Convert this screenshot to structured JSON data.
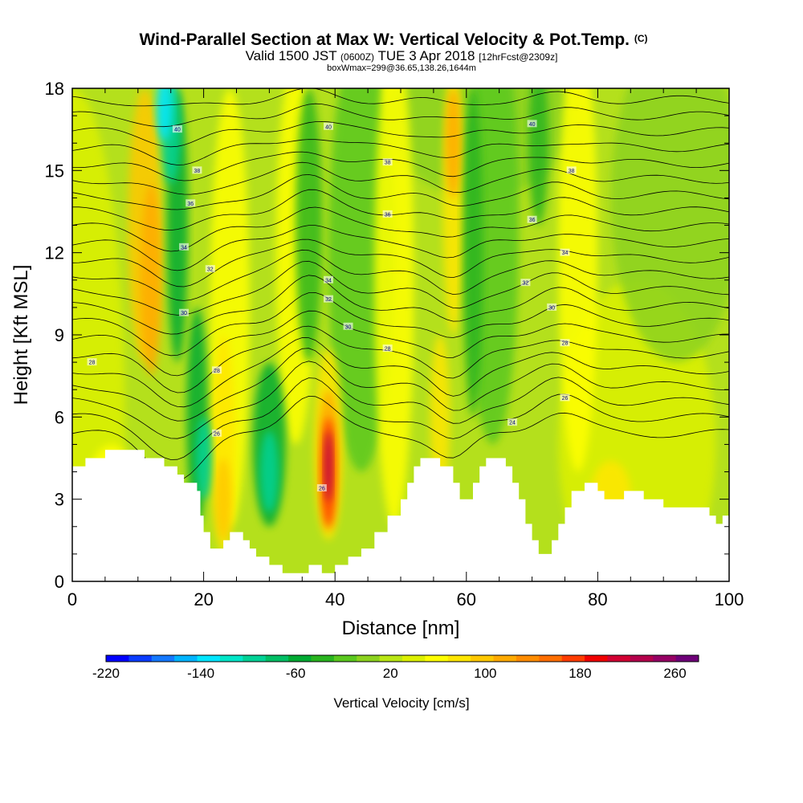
{
  "header": {
    "title": "Wind-Parallel Section at Max W: Vertical Velocity & Pot.Temp.",
    "title_mark": "(C)",
    "subtitle_prefix": "Valid 1500 JST",
    "subtitle_utc": "(0600Z)",
    "subtitle_date": "TUE 3 Apr 2018",
    "subtitle_fcst": "[12hrFcst@2309z]",
    "subtitle2": "boxWmax=299@36.65,138.26,1644m"
  },
  "chart_data": {
    "type": "heatmap",
    "title": "Wind-Parallel Section at Max W: Vertical Velocity & Pot.Temp.",
    "xlabel": "Distance [nm]",
    "ylabel": "Height [Kft MSL]",
    "xlim": [
      0,
      100
    ],
    "ylim": [
      0,
      18
    ],
    "x_ticks": [
      0,
      20,
      40,
      60,
      80,
      100
    ],
    "y_ticks": [
      0,
      3,
      6,
      9,
      12,
      15,
      18
    ],
    "grid": false,
    "colorbar": {
      "label": "Vertical Velocity [cm/s]",
      "tick_labels": [
        "-220",
        "-140",
        "-60",
        "20",
        "100",
        "180",
        "260"
      ],
      "tick_values": [
        -220,
        -140,
        -60,
        20,
        100,
        180,
        260
      ],
      "range": [
        -220,
        280
      ],
      "colors": [
        "#0000ff",
        "#0a3cff",
        "#1478ff",
        "#00b4ff",
        "#00e6ff",
        "#00e6c8",
        "#00d296",
        "#00be64",
        "#00aa32",
        "#28b41e",
        "#5ac81e",
        "#8cd21e",
        "#b9e614",
        "#dcf000",
        "#ffff00",
        "#ffe600",
        "#ffc800",
        "#ffaa00",
        "#ff8c00",
        "#ff6e00",
        "#ff3c00",
        "#f00000",
        "#d20032",
        "#b4004b",
        "#960064",
        "#6e0078"
      ]
    },
    "terrain_kft": [
      [
        0,
        4.2
      ],
      [
        2,
        4.2
      ],
      [
        2,
        4.5
      ],
      [
        5,
        4.5
      ],
      [
        5,
        4.8
      ],
      [
        11,
        4.8
      ],
      [
        11,
        4.5
      ],
      [
        14,
        4.5
      ],
      [
        14,
        4.2
      ],
      [
        16,
        4.2
      ],
      [
        16,
        3.9
      ],
      [
        17,
        3.9
      ],
      [
        17,
        3.6
      ],
      [
        19,
        3.6
      ],
      [
        19,
        3.3
      ],
      [
        19.5,
        3.3
      ],
      [
        19.5,
        2.4
      ],
      [
        20,
        2.4
      ],
      [
        20,
        1.8
      ],
      [
        21,
        1.8
      ],
      [
        21,
        1.2
      ],
      [
        23,
        1.2
      ],
      [
        23,
        1.5
      ],
      [
        24,
        1.5
      ],
      [
        24,
        1.8
      ],
      [
        26,
        1.8
      ],
      [
        26,
        1.5
      ],
      [
        27,
        1.5
      ],
      [
        27,
        1.2
      ],
      [
        28,
        1.2
      ],
      [
        28,
        0.9
      ],
      [
        30,
        0.9
      ],
      [
        30,
        0.6
      ],
      [
        32,
        0.6
      ],
      [
        32,
        0.3
      ],
      [
        36,
        0.3
      ],
      [
        36,
        0.6
      ],
      [
        38,
        0.6
      ],
      [
        38,
        0.3
      ],
      [
        40,
        0.3
      ],
      [
        40,
        0.6
      ],
      [
        42,
        0.6
      ],
      [
        42,
        0.9
      ],
      [
        44,
        0.9
      ],
      [
        44,
        1.2
      ],
      [
        46,
        1.2
      ],
      [
        46,
        1.8
      ],
      [
        48,
        1.8
      ],
      [
        48,
        2.4
      ],
      [
        50,
        2.4
      ],
      [
        50,
        3.0
      ],
      [
        51,
        3.0
      ],
      [
        51,
        3.6
      ],
      [
        52,
        3.6
      ],
      [
        52,
        4.2
      ],
      [
        53,
        4.2
      ],
      [
        53,
        4.5
      ],
      [
        56,
        4.5
      ],
      [
        56,
        4.2
      ],
      [
        58,
        4.2
      ],
      [
        58,
        3.6
      ],
      [
        59,
        3.6
      ],
      [
        59,
        3.0
      ],
      [
        61,
        3.0
      ],
      [
        61,
        3.6
      ],
      [
        62,
        3.6
      ],
      [
        62,
        4.2
      ],
      [
        63,
        4.2
      ],
      [
        63,
        4.5
      ],
      [
        66,
        4.5
      ],
      [
        66,
        4.2
      ],
      [
        67,
        4.2
      ],
      [
        67,
        3.6
      ],
      [
        68,
        3.6
      ],
      [
        68,
        3.0
      ],
      [
        69,
        3.0
      ],
      [
        69,
        2.1
      ],
      [
        70,
        2.1
      ],
      [
        70,
        1.5
      ],
      [
        71,
        1.5
      ],
      [
        71,
        1.0
      ],
      [
        73,
        1.0
      ],
      [
        73,
        1.5
      ],
      [
        74,
        1.5
      ],
      [
        74,
        2.1
      ],
      [
        75,
        2.1
      ],
      [
        75,
        2.7
      ],
      [
        76,
        2.7
      ],
      [
        76,
        3.3
      ],
      [
        78,
        3.3
      ],
      [
        78,
        3.6
      ],
      [
        80,
        3.6
      ],
      [
        80,
        3.3
      ],
      [
        81,
        3.3
      ],
      [
        81,
        3.0
      ],
      [
        84,
        3.0
      ],
      [
        84,
        3.3
      ],
      [
        87,
        3.3
      ],
      [
        87,
        3.0
      ],
      [
        90,
        3.0
      ],
      [
        90,
        2.7
      ],
      [
        97,
        2.7
      ],
      [
        97,
        2.4
      ],
      [
        98,
        2.4
      ],
      [
        98,
        2.1
      ],
      [
        99,
        2.1
      ],
      [
        99,
        2.4
      ],
      [
        100,
        2.4
      ]
    ],
    "contour_labels": [
      {
        "x": 3,
        "y": 8.0,
        "text": "28"
      },
      {
        "x": 16,
        "y": 16.5,
        "text": "40"
      },
      {
        "x": 19,
        "y": 15.0,
        "text": "38"
      },
      {
        "x": 18,
        "y": 13.8,
        "text": "36"
      },
      {
        "x": 17,
        "y": 12.2,
        "text": "34"
      },
      {
        "x": 21,
        "y": 11.4,
        "text": "32"
      },
      {
        "x": 17,
        "y": 9.8,
        "text": "30"
      },
      {
        "x": 22,
        "y": 7.7,
        "text": "28"
      },
      {
        "x": 22,
        "y": 5.4,
        "text": "26"
      },
      {
        "x": 39,
        "y": 11.0,
        "text": "34"
      },
      {
        "x": 39,
        "y": 10.3,
        "text": "32"
      },
      {
        "x": 39,
        "y": 16.6,
        "text": "40"
      },
      {
        "x": 48,
        "y": 15.3,
        "text": "38"
      },
      {
        "x": 48,
        "y": 13.4,
        "text": "36"
      },
      {
        "x": 42,
        "y": 9.3,
        "text": "30"
      },
      {
        "x": 48,
        "y": 8.5,
        "text": "28"
      },
      {
        "x": 38,
        "y": 3.4,
        "text": "26"
      },
      {
        "x": 70,
        "y": 16.7,
        "text": "40"
      },
      {
        "x": 76,
        "y": 15.0,
        "text": "38"
      },
      {
        "x": 70,
        "y": 13.2,
        "text": "36"
      },
      {
        "x": 75,
        "y": 12.0,
        "text": "34"
      },
      {
        "x": 69,
        "y": 10.9,
        "text": "32"
      },
      {
        "x": 73,
        "y": 10.0,
        "text": "30"
      },
      {
        "x": 75,
        "y": 8.7,
        "text": "28"
      },
      {
        "x": 75,
        "y": 6.7,
        "text": "26"
      },
      {
        "x": 67,
        "y": 5.8,
        "text": "24"
      }
    ]
  }
}
